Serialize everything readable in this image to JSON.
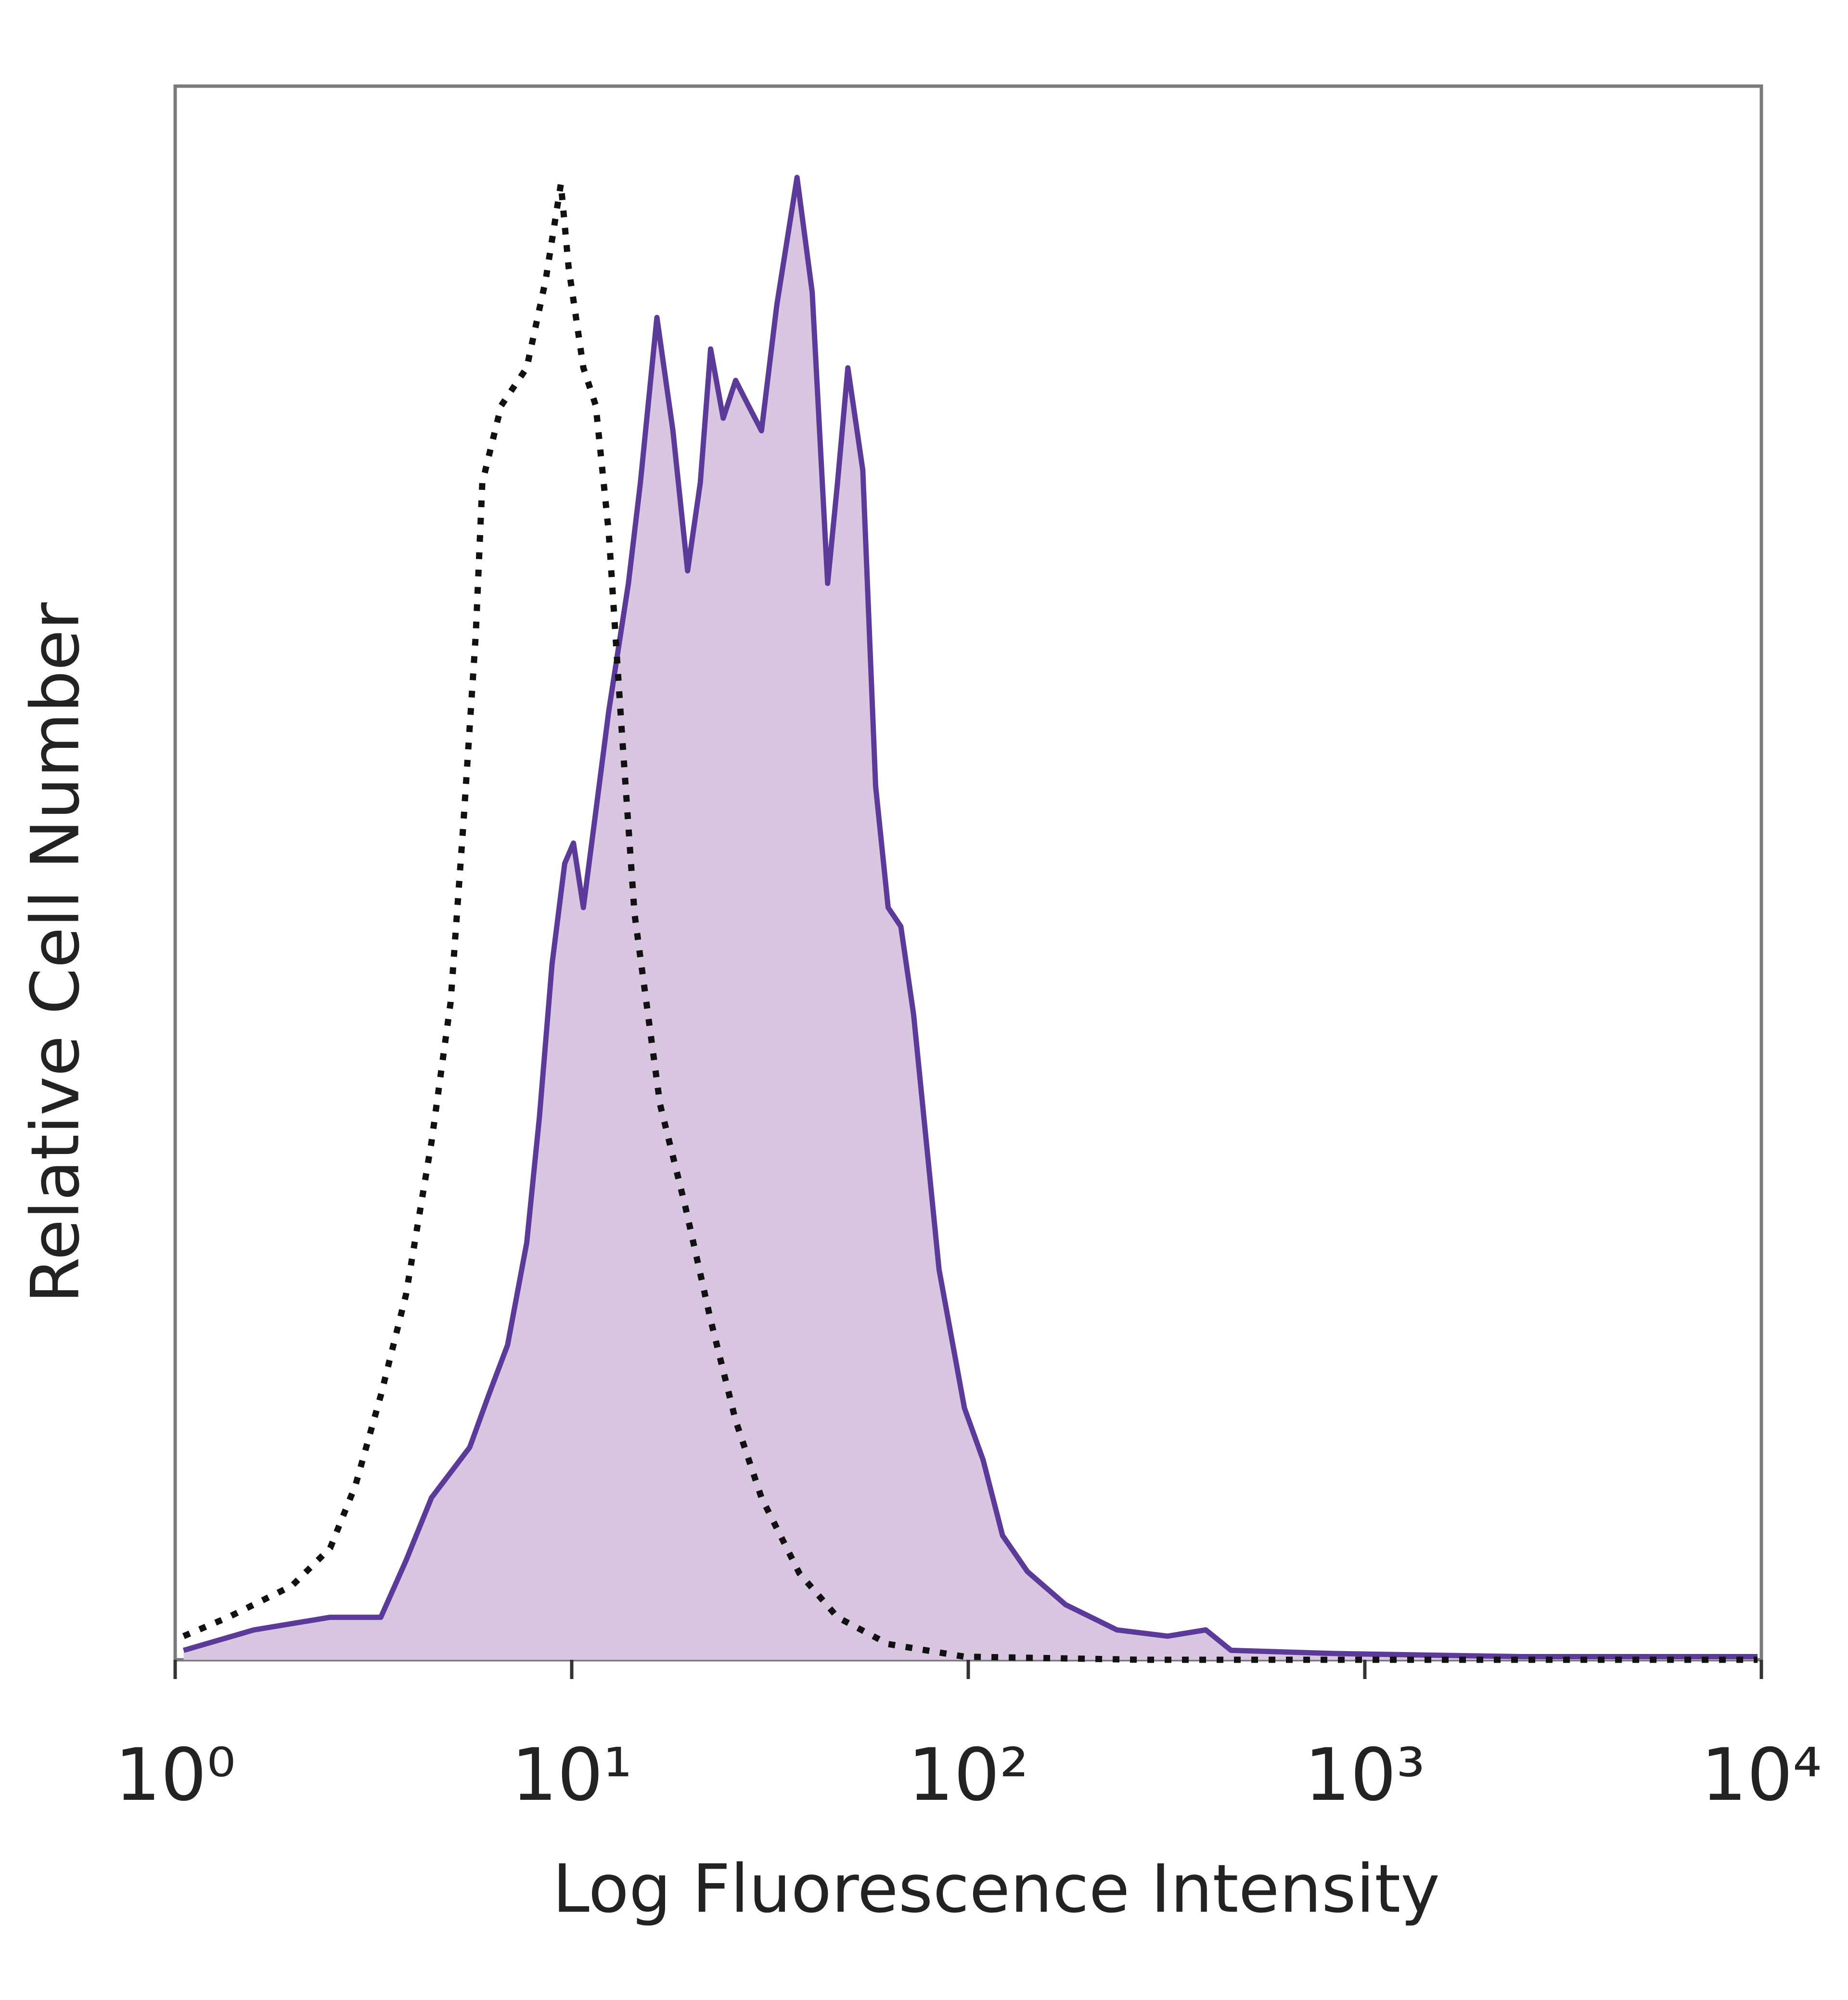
{
  "chart_data": {
    "type": "line",
    "xlabel": "Log Fluorescence Intensity",
    "ylabel": "Relative Cell Number",
    "xscale": "log",
    "xlim": [
      1,
      10000
    ],
    "ylim": [
      0,
      100
    ],
    "xticks": [
      {
        "value": 1,
        "label": "10⁰"
      },
      {
        "value": 10,
        "label": "10¹"
      },
      {
        "value": 100,
        "label": "10²"
      },
      {
        "value": 1000,
        "label": "10³"
      },
      {
        "value": 10000,
        "label": "10⁴"
      }
    ],
    "series": [
      {
        "color": "#5b3a9a",
        "fill": "#d9c6e0",
        "line_style": "solid",
        "x": [
          1.05,
          1.58,
          2.46,
          3.3,
          3.82,
          4.43,
          5.53,
          6.17,
          6.89,
          7.7,
          8.29,
          8.92,
          9.6,
          10.1,
          10.7,
          11.5,
          12.4,
          13.9,
          14.9,
          16.4,
          18.0,
          19.6,
          21.1,
          22.4,
          24.1,
          25.9,
          27.9,
          30.1,
          32.9,
          37.0,
          40.4,
          44.2,
          46.8,
          49.7,
          54.2,
          58.4,
          62.8,
          67.6,
          72.8,
          84.4,
          97.8,
          109,
          122,
          141,
          176,
          237,
          318,
          397,
          460,
          829,
          2500,
          9780
        ],
        "values": [
          0.6,
          1.9,
          2.7,
          2.7,
          6.3,
          10.3,
          13.5,
          16.8,
          20,
          26.5,
          34.5,
          44.2,
          50.6,
          51.9,
          47.8,
          53.9,
          60.3,
          68.4,
          74.8,
          85.3,
          78.1,
          69.2,
          74.8,
          83.3,
          78.9,
          81.3,
          79.7,
          78.1,
          86.1,
          94.2,
          86.9,
          68.4,
          74.8,
          82.1,
          75.6,
          55.5,
          47.8,
          46.6,
          41,
          24.8,
          16,
          12.7,
          7.9,
          5.6,
          3.5,
          1.9,
          1.5,
          1.9,
          0.6,
          0.4,
          0.2,
          0.2
        ]
      },
      {
        "color": "#111111",
        "line_style": "dotted",
        "x": [
          1.05,
          1.36,
          1.97,
          2.46,
          2.85,
          3.3,
          3.82,
          4.43,
          4.95,
          5.33,
          5.73,
          5.95,
          6.64,
          7.7,
          8.6,
          9.39,
          9.82,
          10.7,
          11.5,
          12.4,
          13.4,
          14.4,
          16.7,
          19.3,
          22.4,
          25.9,
          30.1,
          37.5,
          46.8,
          62.8,
          97.8,
          274,
          9780
        ],
        "values": [
          1.5,
          2.7,
          4.7,
          7.1,
          11.1,
          16.8,
          23.2,
          32.9,
          41.8,
          53.1,
          65.2,
          74.8,
          79.7,
          82.1,
          87.7,
          93.8,
          88.5,
          82.1,
          79.7,
          71.6,
          58.7,
          47.4,
          35.3,
          28.9,
          21.6,
          15.2,
          10.3,
          5.5,
          2.7,
          1,
          0.2,
          0,
          0
        ]
      }
    ]
  }
}
